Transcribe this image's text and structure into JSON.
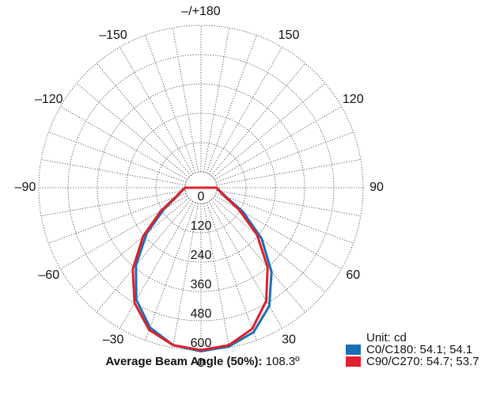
{
  "chart_data": {
    "type": "polar-line",
    "unit_label": "Unit: cd",
    "angle_labels": [
      {
        "angle": 180,
        "text": "–/+180"
      },
      {
        "angle": 150,
        "text": "150"
      },
      {
        "angle": 120,
        "text": "120"
      },
      {
        "angle": 90,
        "text": "90"
      },
      {
        "angle": 60,
        "text": "60"
      },
      {
        "angle": 30,
        "text": "30"
      },
      {
        "angle": 0,
        "text": "0"
      },
      {
        "angle": -30,
        "text": "–30"
      },
      {
        "angle": -60,
        "text": "–60"
      },
      {
        "angle": -90,
        "text": "–90"
      },
      {
        "angle": -120,
        "text": "–120"
      },
      {
        "angle": -150,
        "text": "–150"
      }
    ],
    "radial_ticks": [
      0,
      120,
      240,
      360,
      480,
      600
    ],
    "rlim": [
      0,
      600
    ],
    "angle_step": 10,
    "grid": true,
    "series": [
      {
        "name": "C0/C180: 54.1; 54.1",
        "color": "#1a6fb5",
        "angles": [
          -90,
          -80,
          -70,
          -60,
          -50,
          -40,
          -30,
          -20,
          -10,
          0,
          10,
          20,
          30,
          40,
          50,
          60,
          70,
          80,
          90
        ],
        "values": [
          0,
          15,
          40,
          110,
          225,
          350,
          465,
          545,
          590,
          605,
          595,
          565,
          495,
          385,
          260,
          135,
          45,
          15,
          0
        ]
      },
      {
        "name": "C90/C270: 54.7; 53.7",
        "color": "#e0202c",
        "angles": [
          -90,
          -80,
          -70,
          -60,
          -50,
          -40,
          -30,
          -20,
          -10,
          0,
          10,
          20,
          30,
          40,
          50,
          60,
          70,
          80,
          90
        ],
        "values": [
          0,
          18,
          45,
          125,
          245,
          370,
          480,
          555,
          590,
          600,
          590,
          550,
          470,
          360,
          235,
          115,
          38,
          12,
          0
        ]
      }
    ]
  },
  "footer": {
    "label": "Average Beam Angle (50%):",
    "value": "108.3º"
  }
}
